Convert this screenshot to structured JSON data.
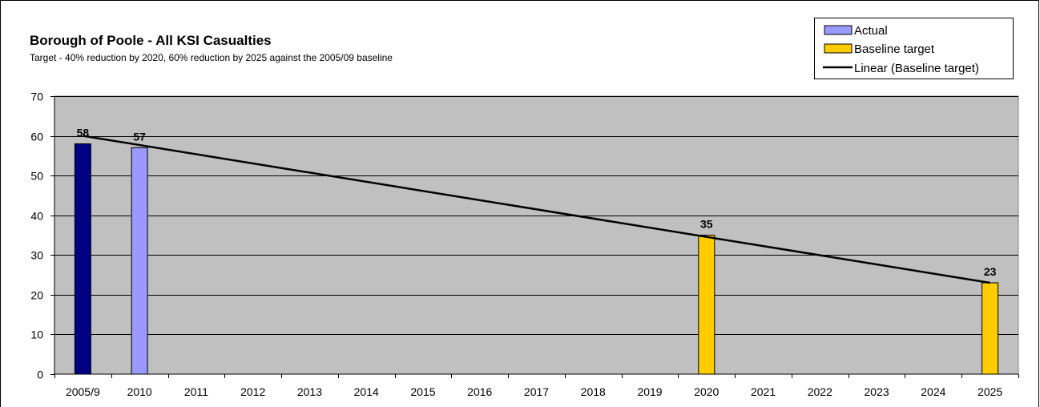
{
  "chart_data": {
    "type": "bar",
    "title": "Borough of Poole - All KSI Casualties",
    "subtitle": "Target - 40% reduction by 2020, 60% reduction by 2025 against the 2005/09 baseline",
    "xlabel": "",
    "ylabel": "",
    "ylim": [
      0,
      70
    ],
    "yticks": [
      0,
      10,
      20,
      30,
      40,
      50,
      60,
      70
    ],
    "grid": true,
    "legend_position": "top-right",
    "categories": [
      "2005/9",
      "2010",
      "2011",
      "2012",
      "2013",
      "2014",
      "2015",
      "2016",
      "2017",
      "2018",
      "2019",
      "2020",
      "2021",
      "2022",
      "2023",
      "2024",
      "2025"
    ],
    "bars": [
      {
        "category": "2005/9",
        "value": 58,
        "color": "#000080",
        "label": "58"
      },
      {
        "category": "2010",
        "value": 57,
        "color": "#9999ff",
        "label": "57"
      },
      {
        "category": "2020",
        "value": 35,
        "color": "#ffcc00",
        "label": "35"
      },
      {
        "category": "2025",
        "value": 23,
        "color": "#ffcc00",
        "label": "23"
      }
    ],
    "series": [
      {
        "name": "Actual",
        "color": "#9999ff",
        "kind": "bar"
      },
      {
        "name": "Baseline target",
        "color": "#ffcc00",
        "kind": "bar"
      },
      {
        "name": "Linear (Baseline target)",
        "color": "#000000",
        "kind": "line"
      }
    ],
    "trendline": {
      "points": [
        {
          "category": "2005/9",
          "value": 60
        },
        {
          "category": "2025",
          "value": 23
        }
      ]
    }
  }
}
